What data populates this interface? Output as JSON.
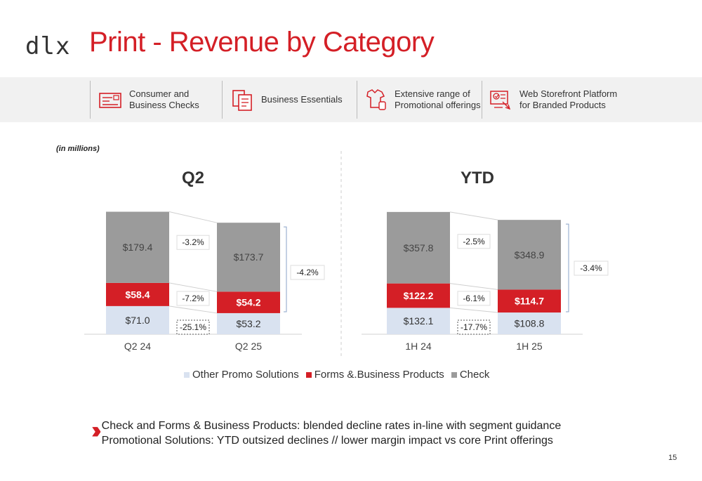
{
  "header": {
    "logo": "dlx",
    "title": "Print - Revenue by Category"
  },
  "categories_bar": [
    {
      "label": "Consumer and\nBusiness Checks",
      "icon": "check-document-icon"
    },
    {
      "label": "Business Essentials",
      "icon": "forms-icon"
    },
    {
      "label": "Extensive range of\nPromotional offerings",
      "icon": "promo-apparel-icon"
    },
    {
      "label": "Web Storefront Platform\nfor Branded Products",
      "icon": "web-storefront-icon"
    }
  ],
  "units_note": "(in millions)",
  "colors": {
    "check": "#9b9b9b",
    "forms": "#d41f26",
    "promo": "#d9e2f0",
    "accent": "#d41f26"
  },
  "chart_data": [
    {
      "type": "bar",
      "stacked": true,
      "title": "Q2",
      "categories": [
        "Q2 24",
        "Q2 25"
      ],
      "series": [
        {
          "name": "Other Promo Solutions",
          "values": [
            71.0,
            53.2
          ],
          "labels": [
            "$71.0",
            "$53.2"
          ],
          "change": "-25.1%"
        },
        {
          "name": "Forms &.Business Products",
          "values": [
            58.4,
            54.2
          ],
          "labels": [
            "$58.4",
            "$54.2"
          ],
          "change": "-7.2%"
        },
        {
          "name": "Check",
          "values": [
            179.4,
            173.7
          ],
          "labels": [
            "$179.4",
            "$173.7"
          ],
          "change": "-3.2%"
        }
      ],
      "total_change": "-4.2%"
    },
    {
      "type": "bar",
      "stacked": true,
      "title": "YTD",
      "categories": [
        "1H 24",
        "1H 25"
      ],
      "series": [
        {
          "name": "Other Promo Solutions",
          "values": [
            132.1,
            108.8
          ],
          "labels": [
            "$132.1",
            "$108.8"
          ],
          "change": "-17.7%"
        },
        {
          "name": "Forms &.Business Products",
          "values": [
            122.2,
            114.7
          ],
          "labels": [
            "$122.2",
            "$114.7"
          ],
          "change": "-6.1%"
        },
        {
          "name": "Check",
          "values": [
            357.8,
            348.9
          ],
          "labels": [
            "$357.8",
            "$348.9"
          ],
          "change": "-2.5%"
        }
      ],
      "total_change": "-3.4%"
    }
  ],
  "legend": [
    {
      "name": "Other Promo Solutions",
      "color_key": "promo"
    },
    {
      "name": "Forms &.Business Products",
      "color_key": "forms"
    },
    {
      "name": "Check",
      "color_key": "check"
    }
  ],
  "bullets": [
    "Check and Forms & Business Products: blended decline rates in-line with segment guidance",
    "Promotional Solutions: YTD outsized declines // lower margin impact vs core Print offerings"
  ],
  "page_number": "15"
}
